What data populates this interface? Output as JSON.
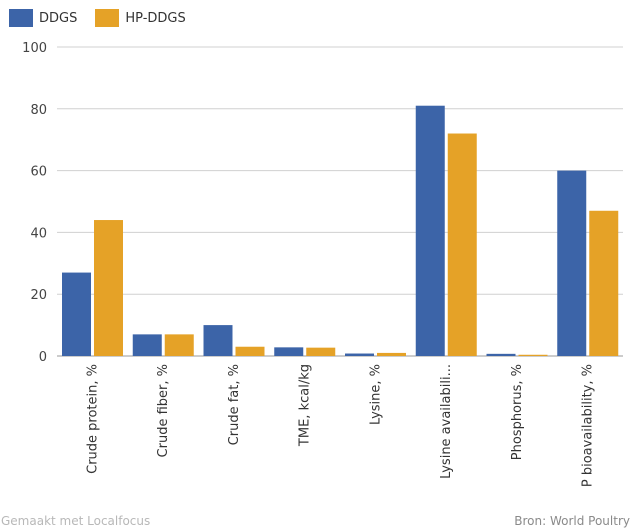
{
  "chart_data": {
    "type": "bar",
    "categories": [
      "Crude protein, %",
      "Crude fiber, %",
      "Crude fat, %",
      "TME, kcal/kg",
      "Lysine, %",
      "Lysine availabili...",
      "Phosphorus, %",
      "P bioavailability, %"
    ],
    "series": [
      {
        "name": "DDGS",
        "color": "#3c64a8",
        "values": [
          27,
          7,
          10,
          2.8,
          0.8,
          81,
          0.7,
          60
        ]
      },
      {
        "name": "HP-DDGS",
        "color": "#e5a227",
        "values": [
          44,
          7,
          3,
          2.7,
          1.0,
          72,
          0.4,
          47
        ]
      }
    ],
    "ylim": [
      0,
      100
    ],
    "yticks": [
      0,
      20,
      40,
      60,
      80,
      100
    ],
    "grid": true,
    "legend": "top-left"
  },
  "footer": {
    "left": "Gemaakt met Localfocus",
    "right": "Bron:  World Poultry"
  }
}
